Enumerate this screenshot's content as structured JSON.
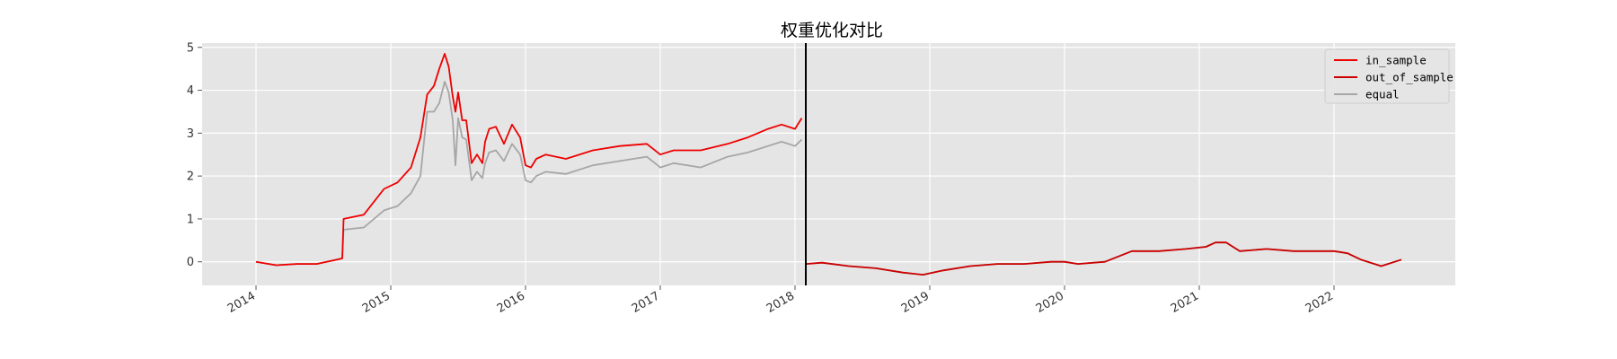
{
  "chart_data": {
    "type": "line",
    "title": "权重优化对比",
    "xlabel": "",
    "ylabel": "",
    "x_tick_labels": [
      "2014",
      "2015",
      "2016",
      "2017",
      "2018",
      "2019",
      "2020",
      "2021",
      "2022"
    ],
    "y_tick_labels": [
      "5",
      "4",
      "3",
      "2",
      "1",
      "0"
    ],
    "xlim": [
      2013.6,
      2022.9
    ],
    "ylim": [
      -0.55,
      5.1
    ],
    "vertical_line_x": 2018.08,
    "grid": true,
    "legend_position": "top-right",
    "series": [
      {
        "name": "in_sample",
        "color": "#ee0000",
        "x": [
          2014.0,
          2014.15,
          2014.3,
          2014.45,
          2014.6,
          2014.64,
          2014.65,
          2014.8,
          2014.95,
          2015.05,
          2015.15,
          2015.22,
          2015.27,
          2015.32,
          2015.36,
          2015.4,
          2015.43,
          2015.46,
          2015.48,
          2015.5,
          2015.53,
          2015.56,
          2015.6,
          2015.64,
          2015.68,
          2015.7,
          2015.73,
          2015.78,
          2015.84,
          2015.9,
          2015.96,
          2016.0,
          2016.04,
          2016.08,
          2016.15,
          2016.3,
          2016.5,
          2016.7,
          2016.9,
          2017.0,
          2017.1,
          2017.3,
          2017.5,
          2017.65,
          2017.8,
          2017.9,
          2018.0,
          2018.05
        ],
        "y": [
          0.0,
          -0.08,
          -0.05,
          -0.05,
          0.05,
          0.08,
          1.0,
          1.1,
          1.7,
          1.85,
          2.2,
          2.9,
          3.9,
          4.1,
          4.5,
          4.85,
          4.55,
          3.85,
          3.5,
          3.95,
          3.3,
          3.3,
          2.3,
          2.5,
          2.3,
          2.8,
          3.1,
          3.15,
          2.75,
          3.2,
          2.9,
          2.25,
          2.2,
          2.4,
          2.5,
          2.4,
          2.6,
          2.7,
          2.75,
          2.5,
          2.6,
          2.6,
          2.75,
          2.9,
          3.1,
          3.2,
          3.1,
          3.35
        ]
      },
      {
        "name": "out_of_sample",
        "color": "#cc0000",
        "x": [
          2018.08,
          2018.2,
          2018.4,
          2018.6,
          2018.8,
          2018.95,
          2019.1,
          2019.3,
          2019.5,
          2019.7,
          2019.9,
          2020.0,
          2020.1,
          2020.3,
          2020.5,
          2020.7,
          2020.9,
          2021.05,
          2021.12,
          2021.2,
          2021.3,
          2021.5,
          2021.7,
          2021.9,
          2022.0,
          2022.1,
          2022.2,
          2022.35,
          2022.5
        ],
        "y": [
          -0.05,
          -0.02,
          -0.1,
          -0.15,
          -0.25,
          -0.3,
          -0.2,
          -0.1,
          -0.05,
          -0.05,
          0.0,
          0.0,
          -0.05,
          0.0,
          0.25,
          0.25,
          0.3,
          0.35,
          0.45,
          0.45,
          0.25,
          0.3,
          0.25,
          0.25,
          0.25,
          0.2,
          0.05,
          -0.1,
          0.05
        ]
      },
      {
        "name": "equal",
        "color": "#a6a6a6",
        "x": [
          2014.0,
          2014.15,
          2014.3,
          2014.45,
          2014.6,
          2014.64,
          2014.65,
          2014.8,
          2014.95,
          2015.05,
          2015.15,
          2015.22,
          2015.27,
          2015.32,
          2015.36,
          2015.4,
          2015.43,
          2015.46,
          2015.48,
          2015.5,
          2015.53,
          2015.56,
          2015.6,
          2015.64,
          2015.68,
          2015.7,
          2015.73,
          2015.78,
          2015.84,
          2015.9,
          2015.96,
          2016.0,
          2016.04,
          2016.08,
          2016.15,
          2016.3,
          2016.5,
          2016.7,
          2016.9,
          2017.0,
          2017.1,
          2017.3,
          2017.5,
          2017.65,
          2017.8,
          2017.9,
          2018.0,
          2018.05,
          2018.08,
          2018.2,
          2018.4,
          2018.6,
          2018.8,
          2018.95,
          2019.1,
          2019.3,
          2019.5,
          2019.7,
          2019.9,
          2020.0,
          2020.1,
          2020.3,
          2020.5,
          2020.7,
          2020.9,
          2021.05,
          2021.12,
          2021.2,
          2021.3,
          2021.5,
          2021.7,
          2021.9,
          2022.0,
          2022.1,
          2022.2,
          2022.35,
          2022.5
        ],
        "y": [
          0.0,
          -0.08,
          -0.05,
          -0.05,
          0.05,
          0.08,
          0.75,
          0.8,
          1.2,
          1.3,
          1.6,
          2.0,
          3.5,
          3.5,
          3.7,
          4.2,
          3.95,
          3.3,
          2.25,
          3.35,
          2.9,
          2.85,
          1.9,
          2.1,
          1.95,
          2.3,
          2.55,
          2.6,
          2.35,
          2.75,
          2.5,
          1.9,
          1.85,
          2.0,
          2.1,
          2.05,
          2.25,
          2.35,
          2.45,
          2.2,
          2.3,
          2.2,
          2.45,
          2.55,
          2.7,
          2.8,
          2.7,
          2.85,
          -0.05,
          -0.02,
          -0.1,
          -0.15,
          -0.25,
          -0.3,
          -0.2,
          -0.1,
          -0.05,
          -0.05,
          0.0,
          0.0,
          -0.05,
          0.0,
          0.25,
          0.25,
          0.3,
          0.35,
          0.45,
          0.45,
          0.25,
          0.3,
          0.25,
          0.25,
          0.25,
          0.2,
          0.05,
          -0.1,
          0.05
        ]
      }
    ]
  }
}
